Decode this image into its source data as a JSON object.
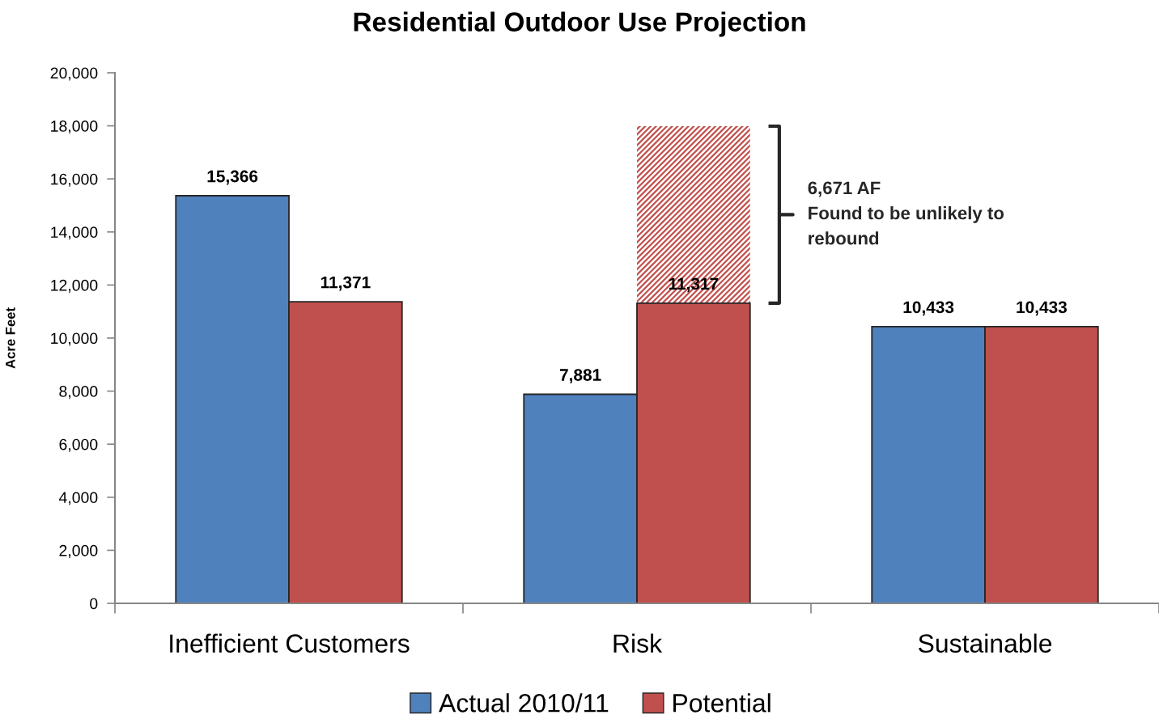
{
  "chart_data": {
    "type": "bar",
    "title": "Residential Outdoor Use Projection",
    "ylabel": "Acre Feet",
    "categories": [
      "Inefficient Customers",
      "Risk",
      "Sustainable"
    ],
    "series": [
      {
        "name": "Actual 2010/11",
        "color": "#4f81bd",
        "values": [
          15366,
          7881,
          10433
        ],
        "value_labels": [
          "15,366",
          "7,881",
          "10,433"
        ]
      },
      {
        "name": "Potential",
        "color": "#c0504d",
        "values": [
          11371,
          11317,
          10433
        ],
        "value_labels": [
          "11,371",
          "11,317",
          "10,433"
        ]
      },
      {
        "color": "#c0504d",
        "values": [
          null,
          6671,
          null
        ],
        "base": [
          null,
          11317,
          null
        ]
      }
    ],
    "ylim": [
      0,
      20000
    ],
    "yticks": [
      0,
      {
        "value": 2000,
        "label": "2,000"
      },
      {
        "value": 4000,
        "label": "4,000"
      },
      {
        "value": 6000,
        "label": "6,000"
      },
      {
        "value": 8000,
        "label": "8,000"
      },
      {
        "value": 10000,
        "label": "10,000"
      },
      {
        "value": 12000,
        "label": "12,000"
      },
      {
        "value": 14000,
        "label": "14,000"
      },
      {
        "value": 16000,
        "label": "16,000"
      },
      {
        "value": 18000,
        "label": "18,000"
      },
      {
        "value": 20000,
        "label": "20,000"
      }
    ],
    "legend": "bottom",
    "annotations": [
      "6,671 AF\nFound to be unlikely to\nrebound"
    ]
  }
}
